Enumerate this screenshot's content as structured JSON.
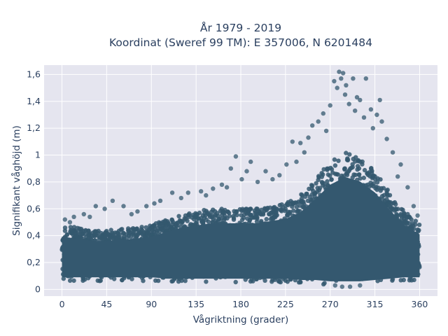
{
  "chart_data": {
    "type": "scatter",
    "title_line1": "År 1979 - 2019",
    "title_line2": "Koordinat (Sweref 99 TM): E 357006, N 6201484",
    "xlabel": "Vågriktning (grader)",
    "ylabel": "Signifikant våghöjd (m)",
    "xlim": [
      -18,
      378
    ],
    "ylim": [
      -0.05,
      1.67
    ],
    "x_ticks": [
      0,
      45,
      90,
      135,
      180,
      225,
      270,
      315,
      360
    ],
    "x_tick_labels": [
      "0",
      "45",
      "90",
      "135",
      "180",
      "225",
      "270",
      "315",
      "360"
    ],
    "y_ticks": [
      0,
      0.2,
      0.4,
      0.6,
      0.8,
      1.0,
      1.2,
      1.4,
      1.6
    ],
    "y_tick_labels": [
      "0",
      "0,2",
      "0,4",
      "0,6",
      "0,8",
      "1",
      "1,2",
      "1,4",
      "1,6"
    ],
    "marker_color": "#34586f",
    "plot_bg": "#e5e5ef",
    "grid": true,
    "density_envelope": {
      "x": [
        0,
        15,
        30,
        45,
        60,
        75,
        90,
        105,
        120,
        135,
        150,
        165,
        180,
        195,
        210,
        225,
        240,
        255,
        270,
        285,
        300,
        315,
        330,
        345,
        360
      ],
      "y_min": [
        0.06,
        0.06,
        0.06,
        0.06,
        0.06,
        0.06,
        0.06,
        0.05,
        0.05,
        0.05,
        0.05,
        0.05,
        0.05,
        0.05,
        0.05,
        0.05,
        0.04,
        0.04,
        0.03,
        0.03,
        0.03,
        0.04,
        0.05,
        0.06,
        0.06
      ],
      "y_max": [
        0.48,
        0.46,
        0.44,
        0.44,
        0.45,
        0.46,
        0.48,
        0.52,
        0.56,
        0.58,
        0.6,
        0.6,
        0.6,
        0.6,
        0.62,
        0.64,
        0.7,
        0.82,
        0.95,
        1.02,
        0.98,
        0.88,
        0.72,
        0.58,
        0.5
      ]
    },
    "outliers": [
      {
        "x": 274,
        "y": 1.55
      },
      {
        "x": 279,
        "y": 1.62
      },
      {
        "x": 283,
        "y": 1.61
      },
      {
        "x": 281,
        "y": 1.57
      },
      {
        "x": 286,
        "y": 1.52
      },
      {
        "x": 277,
        "y": 1.5
      },
      {
        "x": 285,
        "y": 1.45
      },
      {
        "x": 293,
        "y": 1.57
      },
      {
        "x": 297,
        "y": 1.43
      },
      {
        "x": 300,
        "y": 1.41
      },
      {
        "x": 306,
        "y": 1.57
      },
      {
        "x": 311,
        "y": 1.34
      },
      {
        "x": 320,
        "y": 1.41
      },
      {
        "x": 322,
        "y": 1.25
      },
      {
        "x": 317,
        "y": 1.3
      },
      {
        "x": 289,
        "y": 1.38
      },
      {
        "x": 270,
        "y": 1.37
      },
      {
        "x": 263,
        "y": 1.31
      },
      {
        "x": 258,
        "y": 1.25
      },
      {
        "x": 252,
        "y": 1.22
      },
      {
        "x": 248,
        "y": 1.13
      },
      {
        "x": 240,
        "y": 1.09
      },
      {
        "x": 232,
        "y": 1.1
      },
      {
        "x": 226,
        "y": 0.93
      },
      {
        "x": 219,
        "y": 0.85
      },
      {
        "x": 205,
        "y": 0.88
      },
      {
        "x": 190,
        "y": 0.95
      },
      {
        "x": 186,
        "y": 0.88
      },
      {
        "x": 175,
        "y": 0.99
      },
      {
        "x": 170,
        "y": 0.9
      },
      {
        "x": 161,
        "y": 0.78
      },
      {
        "x": 152,
        "y": 0.75
      },
      {
        "x": 140,
        "y": 0.73
      },
      {
        "x": 127,
        "y": 0.72
      },
      {
        "x": 111,
        "y": 0.72
      },
      {
        "x": 99,
        "y": 0.66
      },
      {
        "x": 85,
        "y": 0.62
      },
      {
        "x": 76,
        "y": 0.58
      },
      {
        "x": 62,
        "y": 0.62
      },
      {
        "x": 51,
        "y": 0.66
      },
      {
        "x": 43,
        "y": 0.6
      },
      {
        "x": 34,
        "y": 0.62
      },
      {
        "x": 22,
        "y": 0.56
      },
      {
        "x": 12,
        "y": 0.54
      },
      {
        "x": 3,
        "y": 0.52
      },
      {
        "x": 341,
        "y": 0.93
      },
      {
        "x": 348,
        "y": 0.76
      },
      {
        "x": 354,
        "y": 0.62
      },
      {
        "x": 333,
        "y": 1.02
      },
      {
        "x": 327,
        "y": 1.12
      },
      {
        "x": 313,
        "y": 1.2
      },
      {
        "x": 304,
        "y": 1.28
      },
      {
        "x": 295,
        "y": 1.33
      },
      {
        "x": 266,
        "y": 1.18
      },
      {
        "x": 244,
        "y": 1.02
      },
      {
        "x": 236,
        "y": 0.95
      },
      {
        "x": 212,
        "y": 0.82
      },
      {
        "x": 197,
        "y": 0.8
      },
      {
        "x": 181,
        "y": 0.82
      },
      {
        "x": 166,
        "y": 0.76
      },
      {
        "x": 145,
        "y": 0.7
      },
      {
        "x": 120,
        "y": 0.68
      },
      {
        "x": 93,
        "y": 0.64
      },
      {
        "x": 70,
        "y": 0.56
      },
      {
        "x": 28,
        "y": 0.54
      },
      {
        "x": 8,
        "y": 0.5
      },
      {
        "x": 358,
        "y": 0.55
      },
      {
        "x": 338,
        "y": 0.84
      },
      {
        "x": 290,
        "y": 0.02
      },
      {
        "x": 282,
        "y": 0.02
      },
      {
        "x": 300,
        "y": 0.03
      },
      {
        "x": 275,
        "y": 0.03
      }
    ]
  }
}
